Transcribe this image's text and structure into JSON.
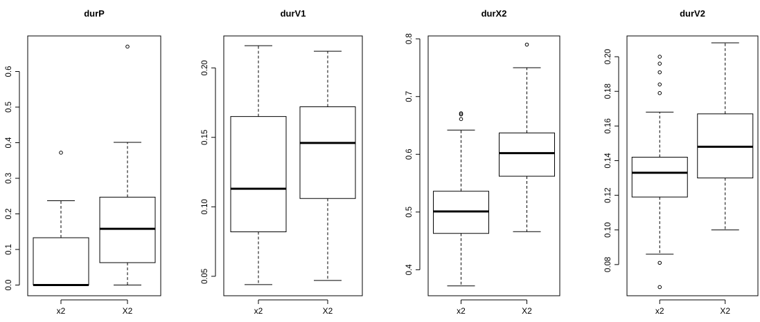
{
  "chart_data": [
    {
      "type": "boxplot",
      "title": "durP",
      "categories": [
        "x2",
        "X2"
      ],
      "ylim": [
        -0.03,
        0.7
      ],
      "yticks": [
        0.0,
        0.1,
        0.2,
        0.3,
        0.4,
        0.5,
        0.6
      ],
      "ytick_labels": [
        "0.0",
        "0.1",
        "0.2",
        "0.3",
        "0.4",
        "0.5",
        "0.6"
      ],
      "boxes": [
        {
          "whisker_low": 0.0,
          "q1": 0.0,
          "median": 0.0,
          "q3": 0.133,
          "whisker_high": 0.237,
          "outliers": [
            0.372
          ]
        },
        {
          "whisker_low": 0.0,
          "q1": 0.063,
          "median": 0.158,
          "q3": 0.247,
          "whisker_high": 0.401,
          "outliers": [
            0.67
          ]
        }
      ]
    },
    {
      "type": "boxplot",
      "title": "durV1",
      "categories": [
        "x2",
        "X2"
      ],
      "ylim": [
        0.036,
        0.223
      ],
      "yticks": [
        0.05,
        0.1,
        0.15,
        0.2
      ],
      "ytick_labels": [
        "0.05",
        "0.10",
        "0.15",
        "0.20"
      ],
      "boxes": [
        {
          "whisker_low": 0.044,
          "q1": 0.082,
          "median": 0.113,
          "q3": 0.165,
          "whisker_high": 0.216,
          "outliers": []
        },
        {
          "whisker_low": 0.047,
          "q1": 0.106,
          "median": 0.146,
          "q3": 0.172,
          "whisker_high": 0.212,
          "outliers": []
        }
      ]
    },
    {
      "type": "boxplot",
      "title": "durX2",
      "categories": [
        "x2",
        "X2"
      ],
      "ylim": [
        0.355,
        0.805
      ],
      "yticks": [
        0.4,
        0.5,
        0.6,
        0.7,
        0.8
      ],
      "ytick_labels": [
        "0.4",
        "0.5",
        "0.6",
        "0.7",
        "0.8"
      ],
      "boxes": [
        {
          "whisker_low": 0.372,
          "q1": 0.463,
          "median": 0.501,
          "q3": 0.536,
          "whisker_high": 0.642,
          "outliers": [
            0.661,
            0.671,
            0.669
          ]
        },
        {
          "whisker_low": 0.466,
          "q1": 0.562,
          "median": 0.602,
          "q3": 0.637,
          "whisker_high": 0.75,
          "outliers": [
            0.79
          ]
        }
      ]
    },
    {
      "type": "boxplot",
      "title": "durV2",
      "categories": [
        "x2",
        "X2"
      ],
      "ylim": [
        0.062,
        0.212
      ],
      "yticks": [
        0.08,
        0.1,
        0.12,
        0.14,
        0.16,
        0.18,
        0.2
      ],
      "ytick_labels": [
        "0.08",
        "0.10",
        "0.12",
        "0.14",
        "0.16",
        "0.18",
        "0.20"
      ],
      "boxes": [
        {
          "whisker_low": 0.086,
          "q1": 0.119,
          "median": 0.133,
          "q3": 0.142,
          "whisker_high": 0.168,
          "outliers": [
            0.081,
            0.067,
            0.179,
            0.184,
            0.191,
            0.196,
            0.2
          ]
        },
        {
          "whisker_low": 0.1,
          "q1": 0.13,
          "median": 0.148,
          "q3": 0.167,
          "whisker_high": 0.208,
          "outliers": []
        }
      ]
    }
  ]
}
